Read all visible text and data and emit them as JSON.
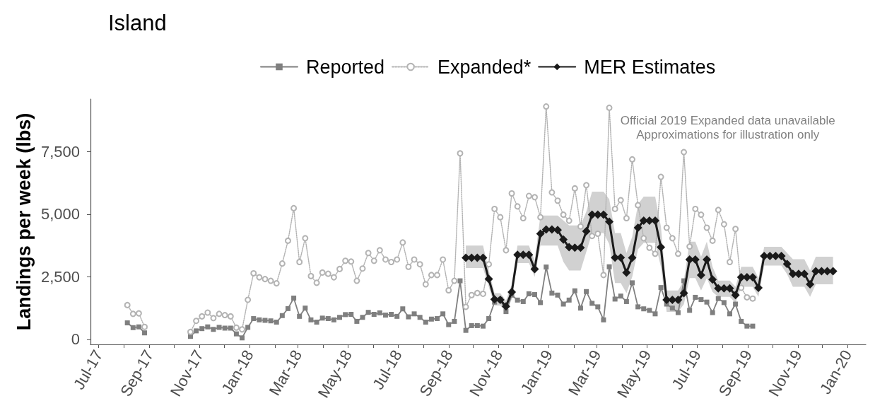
{
  "chart_data": {
    "type": "line",
    "title": "Island",
    "ylabel": "Landings per week (lbs)",
    "annotations": [
      "Official 2019 Expanded data unavailable",
      "Approximations for illustration only"
    ],
    "legend": "top",
    "xlim": [
      "2017-06-21",
      "2020-01-23"
    ],
    "ylim": [
      -200,
      9600
    ],
    "yticks": [
      0,
      {
        "value": 2500,
        "label": "2,500"
      },
      {
        "value": 5000,
        "label": "5,000"
      },
      {
        "value": 7500,
        "label": "7,500"
      }
    ],
    "xticks": [
      {
        "value": "2017-07-01",
        "label": "Jul-17"
      },
      {
        "value": "2017-08-01",
        "label": null
      },
      {
        "value": "2017-09-01",
        "label": "Sep-17"
      },
      {
        "value": "2017-10-01",
        "label": null
      },
      {
        "value": "2017-11-01",
        "label": "Nov-17"
      },
      {
        "value": "2017-12-01",
        "label": null
      },
      {
        "value": "2018-01-01",
        "label": "Jan-18"
      },
      {
        "value": "2018-02-01",
        "label": null
      },
      {
        "value": "2018-03-01",
        "label": "Mar-18"
      },
      {
        "value": "2018-04-01",
        "label": null
      },
      {
        "value": "2018-05-01",
        "label": "May-18"
      },
      {
        "value": "2018-06-01",
        "label": null
      },
      {
        "value": "2018-07-01",
        "label": "Jul-18"
      },
      {
        "value": "2018-08-01",
        "label": null
      },
      {
        "value": "2018-09-01",
        "label": "Sep-18"
      },
      {
        "value": "2018-10-01",
        "label": null
      },
      {
        "value": "2018-11-01",
        "label": "Nov-18"
      },
      {
        "value": "2018-12-01",
        "label": null
      },
      {
        "value": "2019-01-01",
        "label": "Jan-19"
      },
      {
        "value": "2019-02-01",
        "label": null
      },
      {
        "value": "2019-03-01",
        "label": "Mar-19"
      },
      {
        "value": "2019-04-01",
        "label": null
      },
      {
        "value": "2019-05-01",
        "label": "May-19"
      },
      {
        "value": "2019-06-01",
        "label": null
      },
      {
        "value": "2019-07-01",
        "label": "Jul-19"
      },
      {
        "value": "2019-08-01",
        "label": null
      },
      {
        "value": "2019-09-01",
        "label": "Sep-19"
      },
      {
        "value": "2019-10-01",
        "label": null
      },
      {
        "value": "2019-11-01",
        "label": "Nov-19"
      },
      {
        "value": "2019-12-01",
        "label": null
      },
      {
        "value": "2020-01-01",
        "label": "Jan-20"
      }
    ],
    "x": [
      "2017-08-05",
      "2017-08-12",
      "2017-08-19",
      "2017-08-26",
      "2017-09-02",
      "2017-09-09",
      "2017-09-16",
      "2017-09-23",
      "2017-09-30",
      "2017-10-07",
      "2017-10-14",
      "2017-10-21",
      "2017-10-28",
      "2017-11-04",
      "2017-11-11",
      "2017-11-18",
      "2017-11-25",
      "2017-12-02",
      "2017-12-09",
      "2017-12-16",
      "2017-12-23",
      "2017-12-30",
      "2018-01-06",
      "2018-01-13",
      "2018-01-20",
      "2018-01-27",
      "2018-02-03",
      "2018-02-10",
      "2018-02-17",
      "2018-02-24",
      "2018-03-03",
      "2018-03-10",
      "2018-03-17",
      "2018-03-24",
      "2018-03-31",
      "2018-04-07",
      "2018-04-14",
      "2018-04-21",
      "2018-04-28",
      "2018-05-05",
      "2018-05-12",
      "2018-05-19",
      "2018-05-26",
      "2018-06-02",
      "2018-06-09",
      "2018-06-16",
      "2018-06-23",
      "2018-06-30",
      "2018-07-07",
      "2018-07-14",
      "2018-07-21",
      "2018-07-28",
      "2018-08-04",
      "2018-08-11",
      "2018-08-18",
      "2018-08-25",
      "2018-09-01",
      "2018-09-08",
      "2018-09-15",
      "2018-09-22",
      "2018-09-29",
      "2018-10-06",
      "2018-10-13",
      "2018-10-20",
      "2018-10-27",
      "2018-11-03",
      "2018-11-10",
      "2018-11-17",
      "2018-11-24",
      "2018-12-01",
      "2018-12-08",
      "2018-12-15",
      "2018-12-22",
      "2018-12-29",
      "2019-01-05",
      "2019-01-12",
      "2019-01-19",
      "2019-01-26",
      "2019-02-02",
      "2019-02-09",
      "2019-02-16",
      "2019-02-23",
      "2019-03-02",
      "2019-03-09",
      "2019-03-16",
      "2019-03-23",
      "2019-03-30",
      "2019-04-06",
      "2019-04-13",
      "2019-04-20",
      "2019-04-27",
      "2019-05-04",
      "2019-05-11",
      "2019-05-18",
      "2019-05-25",
      "2019-06-01",
      "2019-06-08",
      "2019-06-15",
      "2019-06-22",
      "2019-06-29",
      "2019-07-06",
      "2019-07-13",
      "2019-07-20",
      "2019-07-27",
      "2019-08-03",
      "2019-08-10",
      "2019-08-17",
      "2019-08-24",
      "2019-08-31",
      "2019-09-07",
      "2019-09-14",
      "2019-09-21",
      "2019-09-28",
      "2019-10-05",
      "2019-10-12",
      "2019-10-19",
      "2019-10-26",
      "2019-11-02",
      "2019-11-09",
      "2019-11-16",
      "2019-11-23",
      "2019-11-30",
      "2019-12-07",
      "2019-12-14"
    ],
    "series": [
      {
        "name": "Reported",
        "color": "#7f7f7f",
        "marker": "square",
        "line_style": "solid",
        "values": [
          660,
          470,
          500,
          260,
          null,
          null,
          null,
          null,
          null,
          null,
          null,
          120,
          340,
          430,
          500,
          400,
          480,
          450,
          450,
          220,
          60,
          480,
          830,
          780,
          760,
          740,
          690,
          950,
          1230,
          1650,
          920,
          1250,
          780,
          690,
          850,
          830,
          780,
          880,
          990,
          1000,
          720,
          880,
          1080,
          1000,
          1060,
          970,
          1000,
          920,
          1220,
          900,
          1020,
          880,
          690,
          810,
          830,
          1020,
          590,
          720,
          2340,
          360,
          550,
          550,
          530,
          830,
          1490,
          1600,
          1110,
          1770,
          1570,
          1510,
          1820,
          1790,
          1470,
          2890,
          1850,
          1770,
          1410,
          1570,
          1940,
          1250,
          1910,
          1440,
          1300,
          780,
          2900,
          1610,
          1730,
          1510,
          2260,
          1300,
          1220,
          1160,
          1020,
          2070,
          1410,
          1250,
          1070,
          2340,
          1160,
          1680,
          1590,
          1490,
          1070,
          1630,
          1470,
          1020,
          1410,
          720,
          530,
          530,
          null,
          null,
          null,
          null,
          null,
          null,
          null,
          null,
          null,
          null,
          null,
          null,
          null,
          null
        ]
      },
      {
        "name": "Expanded*",
        "color": "#b3b3b3",
        "marker": "circle",
        "line_style": "dotted",
        "values": [
          1370,
          1020,
          1040,
          500,
          null,
          null,
          null,
          null,
          null,
          null,
          null,
          300,
          740,
          920,
          1070,
          850,
          1020,
          970,
          920,
          470,
          400,
          1580,
          2640,
          2480,
          2410,
          2340,
          2240,
          3030,
          3940,
          5240,
          3090,
          4040,
          2530,
          2260,
          2670,
          2620,
          2480,
          2810,
          3140,
          3110,
          2340,
          2830,
          3450,
          3140,
          3560,
          3190,
          3090,
          3190,
          3870,
          2900,
          3190,
          3000,
          2200,
          2570,
          2570,
          3190,
          1960,
          2340,
          7430,
          1300,
          1770,
          1850,
          1820,
          3000,
          5210,
          4880,
          3560,
          5830,
          5310,
          4840,
          5730,
          5680,
          4880,
          9300,
          5870,
          5540,
          4980,
          4740,
          6030,
          4510,
          6160,
          4130,
          4220,
          2570,
          9250,
          5210,
          5560,
          4840,
          7190,
          5360,
          4040,
          3660,
          3420,
          6490,
          4460,
          4040,
          3420,
          7480,
          3710,
          5210,
          4980,
          4460,
          3940,
          5170,
          4600,
          3090,
          4410,
          2060,
          1680,
          1630,
          null,
          null,
          null,
          null,
          null,
          null,
          null,
          null,
          null,
          null,
          null,
          null,
          null,
          null
        ]
      },
      {
        "name": "MER Estimates",
        "color": "#1a1a1a",
        "marker": "diamond",
        "line_style": "solid",
        "values": [
          null,
          null,
          null,
          null,
          null,
          null,
          null,
          null,
          null,
          null,
          null,
          null,
          null,
          null,
          null,
          null,
          null,
          null,
          null,
          null,
          null,
          null,
          null,
          null,
          null,
          null,
          null,
          null,
          null,
          null,
          null,
          null,
          null,
          null,
          null,
          null,
          null,
          null,
          null,
          null,
          null,
          null,
          null,
          null,
          null,
          null,
          null,
          null,
          null,
          null,
          null,
          null,
          null,
          null,
          null,
          null,
          null,
          null,
          null,
          3260,
          3260,
          3260,
          3260,
          2410,
          1600,
          1580,
          1320,
          1890,
          3380,
          3380,
          3380,
          2810,
          4220,
          4390,
          4390,
          4370,
          3990,
          3680,
          3660,
          3660,
          4320,
          4980,
          4980,
          4980,
          4700,
          3270,
          3270,
          2670,
          3260,
          4460,
          4740,
          4740,
          4740,
          3680,
          1580,
          1580,
          1580,
          1850,
          3190,
          3190,
          2570,
          3190,
          2390,
          2040,
          2040,
          2040,
          1770,
          2480,
          2480,
          2480,
          2060,
          3330,
          3330,
          3330,
          3330,
          3010,
          2620,
          2620,
          2620,
          2200,
          2720,
          2720,
          2720,
          2720
        ],
        "lower": [
          null,
          null,
          null,
          null,
          null,
          null,
          null,
          null,
          null,
          null,
          null,
          null,
          null,
          null,
          null,
          null,
          null,
          null,
          null,
          null,
          null,
          null,
          null,
          null,
          null,
          null,
          null,
          null,
          null,
          null,
          null,
          null,
          null,
          null,
          null,
          null,
          null,
          null,
          null,
          null,
          null,
          null,
          null,
          null,
          null,
          null,
          null,
          null,
          null,
          null,
          null,
          null,
          null,
          null,
          null,
          null,
          null,
          null,
          null,
          2850,
          2850,
          2850,
          2850,
          2100,
          1350,
          1350,
          1100,
          1600,
          3050,
          3050,
          3050,
          2500,
          3750,
          3750,
          3750,
          3750,
          3100,
          2750,
          2750,
          2750,
          3500,
          4250,
          4250,
          4250,
          3800,
          2250,
          2250,
          1850,
          2500,
          3600,
          3850,
          3850,
          3850,
          2900,
          1100,
          1100,
          1100,
          1400,
          2450,
          2450,
          1950,
          2450,
          1900,
          1700,
          1700,
          1700,
          1450,
          2100,
          2100,
          2100,
          1700,
          2950,
          2950,
          2950,
          2950,
          2600,
          2100,
          2100,
          2100,
          1700,
          2200,
          2200,
          2200,
          2200
        ],
        "upper": [
          null,
          null,
          null,
          null,
          null,
          null,
          null,
          null,
          null,
          null,
          null,
          null,
          null,
          null,
          null,
          null,
          null,
          null,
          null,
          null,
          null,
          null,
          null,
          null,
          null,
          null,
          null,
          null,
          null,
          null,
          null,
          null,
          null,
          null,
          null,
          null,
          null,
          null,
          null,
          null,
          null,
          null,
          null,
          null,
          null,
          null,
          null,
          null,
          null,
          null,
          null,
          null,
          null,
          null,
          null,
          null,
          null,
          null,
          null,
          3750,
          3750,
          3750,
          3750,
          2750,
          1850,
          1850,
          1550,
          2200,
          3750,
          3750,
          3750,
          3150,
          4950,
          4950,
          4950,
          4950,
          4750,
          4550,
          4550,
          4550,
          5100,
          5900,
          5900,
          5900,
          5600,
          4250,
          4250,
          3450,
          4100,
          5400,
          5700,
          5700,
          5700,
          4500,
          1950,
          1950,
          1950,
          2350,
          3900,
          3900,
          3300,
          3900,
          2900,
          2350,
          2350,
          2350,
          2100,
          2900,
          2900,
          2900,
          2450,
          3700,
          3700,
          3700,
          3700,
          3450,
          3200,
          3200,
          3200,
          2750,
          3300,
          3300,
          3300,
          3300
        ]
      }
    ]
  }
}
